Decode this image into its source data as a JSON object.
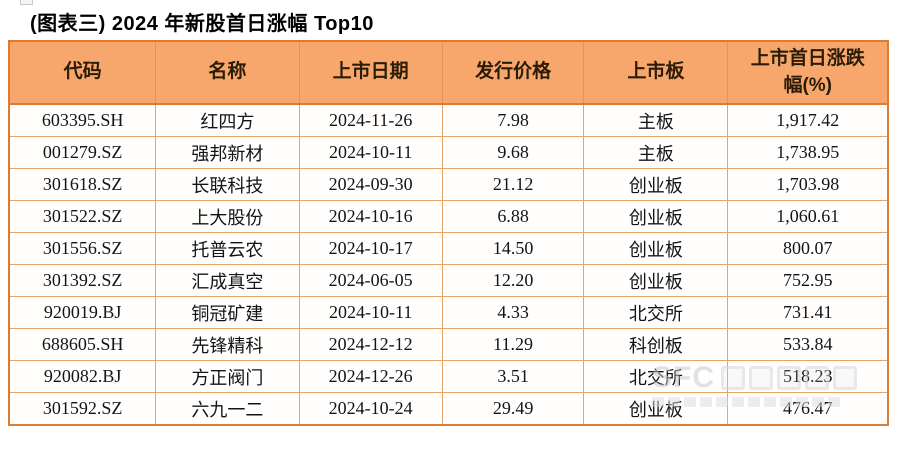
{
  "title": "(图表三)  2024 年新股首日涨幅 Top10",
  "table": {
    "headers": [
      "代码",
      "名称",
      "上市日期",
      "发行价格",
      "上市板",
      "上市首日涨跌幅(%)"
    ],
    "rows": [
      [
        "603395.SH",
        "红四方",
        "2024-11-26",
        "7.98",
        "主板",
        "1,917.42"
      ],
      [
        "001279.SZ",
        "强邦新材",
        "2024-10-11",
        "9.68",
        "主板",
        "1,738.95"
      ],
      [
        "301618.SZ",
        "长联科技",
        "2024-09-30",
        "21.12",
        "创业板",
        "1,703.98"
      ],
      [
        "301522.SZ",
        "上大股份",
        "2024-10-16",
        "6.88",
        "创业板",
        "1,060.61"
      ],
      [
        "301556.SZ",
        "托普云农",
        "2024-10-17",
        "14.50",
        "创业板",
        "800.07"
      ],
      [
        "301392.SZ",
        "汇成真空",
        "2024-06-05",
        "12.20",
        "创业板",
        "752.95"
      ],
      [
        "920019.BJ",
        "铜冠矿建",
        "2024-10-11",
        "4.33",
        "北交所",
        "731.41"
      ],
      [
        "688605.SH",
        "先锋精科",
        "2024-12-12",
        "11.29",
        "科创板",
        "533.84"
      ],
      [
        "920082.BJ",
        "方正阀门",
        "2024-12-26",
        "3.51",
        "北交所",
        "518.23"
      ],
      [
        "301592.SZ",
        "六九一二",
        "2024-10-24",
        "29.49",
        "创业板",
        "476.47"
      ]
    ]
  },
  "watermark": {
    "text": "SFC"
  },
  "colors": {
    "header_bg": "#f7a76c",
    "outer_border": "#dd7b2e",
    "grid_line": "#e6a468",
    "header_text": "#2b1c08"
  }
}
